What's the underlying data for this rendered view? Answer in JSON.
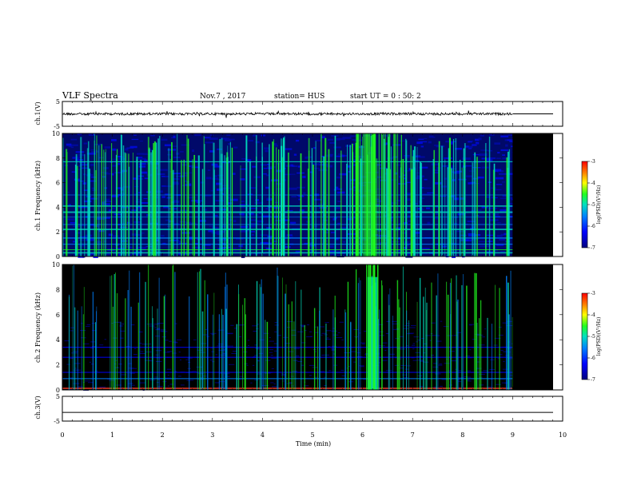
{
  "header": {
    "title": "VLF Spectra",
    "date": "Nov.7 , 2017",
    "station": "station= HUS",
    "start": "start UT = 0 : 50: 2"
  },
  "chart_data": [
    {
      "type": "line",
      "panel": "ch1",
      "ylabel": "ch.1(V)",
      "ylim": [
        -5,
        5
      ],
      "yticks": [
        "5",
        "-5"
      ],
      "xlim": [
        0,
        10
      ],
      "signal_end_min": 9.0,
      "baseline_v": 0
    },
    {
      "type": "heatmap",
      "panel": "ch1-spectrogram",
      "ylabel": "ch.1 Frequency (kHz)",
      "ylim": [
        0,
        10
      ],
      "yticks": [
        "0",
        "2",
        "4",
        "6",
        "8",
        "10"
      ],
      "xlim": [
        0,
        10
      ],
      "data_end_min": 9.0,
      "colorbar": {
        "label": "log(PSD)(V²/Hz)",
        "range": [
          -7,
          -3
        ],
        "ticks": [
          "-3",
          "-4",
          "-5",
          "-6",
          "-7"
        ]
      }
    },
    {
      "type": "heatmap",
      "panel": "ch2-spectrogram",
      "ylabel": "ch.2 Frequency (kHz)",
      "ylim": [
        0,
        10
      ],
      "yticks": [
        "0",
        "2",
        "4",
        "6",
        "8",
        "10"
      ],
      "xlim": [
        0,
        10
      ],
      "data_end_min": 9.0,
      "colorbar": {
        "label": "log(PSD)(V²/Hz)",
        "range": [
          -7,
          -3
        ],
        "ticks": [
          "-3",
          "-4",
          "-5",
          "-6",
          "-7"
        ]
      }
    },
    {
      "type": "line",
      "panel": "ch3",
      "ylabel": "ch.3(V)",
      "ylim": [
        -5,
        5
      ],
      "yticks": [
        "5",
        "-5"
      ],
      "xlim": [
        0,
        10
      ],
      "baseline_v": -1.5
    }
  ],
  "xaxis": {
    "label": "Time (min)",
    "ticks": [
      "0",
      "1",
      "2",
      "3",
      "4",
      "5",
      "6",
      "7",
      "8",
      "9",
      "10"
    ]
  },
  "colors": {
    "background": "#000000",
    "scale": [
      "#00007f",
      "#0000ff",
      "#0080ff",
      "#00e0c0",
      "#20ff20",
      "#ffff00",
      "#ff8000",
      "#ff0000"
    ]
  }
}
